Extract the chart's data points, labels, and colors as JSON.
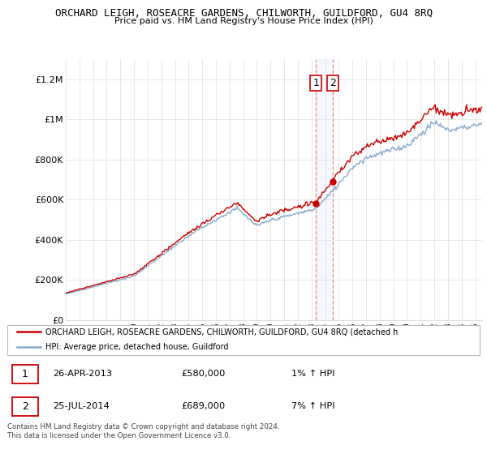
{
  "title": "ORCHARD LEIGH, ROSEACRE GARDENS, CHILWORTH, GUILDFORD, GU4 8RQ",
  "subtitle": "Price paid vs. HM Land Registry's House Price Index (HPI)",
  "ylabel_ticks": [
    "£0",
    "£200K",
    "£400K",
    "£600K",
    "£800K",
    "£1M",
    "£1.2M"
  ],
  "ytick_values": [
    0,
    200000,
    400000,
    600000,
    800000,
    1000000,
    1200000
  ],
  "ylim": [
    0,
    1300000
  ],
  "x_start_year": 1995,
  "x_end_year": 2025,
  "sale1_year": 2013.32,
  "sale1_value": 580000,
  "sale1_date": "26-APR-2013",
  "sale1_price": "£580,000",
  "sale1_hpi": "1% ↑ HPI",
  "sale2_year": 2014.57,
  "sale2_value": 689000,
  "sale2_date": "25-JUL-2014",
  "sale2_price": "£689,000",
  "sale2_hpi": "7% ↑ HPI",
  "property_color": "#cc0000",
  "hpi_color": "#88aacc",
  "legend_property": "ORCHARD LEIGH, ROSEACRE GARDENS, CHILWORTH, GUILDFORD, GU4 8RQ (detached h",
  "legend_hpi": "HPI: Average price, detached house, Guildford",
  "footer1": "Contains HM Land Registry data © Crown copyright and database right 2024.",
  "footer2": "This data is licensed under the Open Government Licence v3.0."
}
